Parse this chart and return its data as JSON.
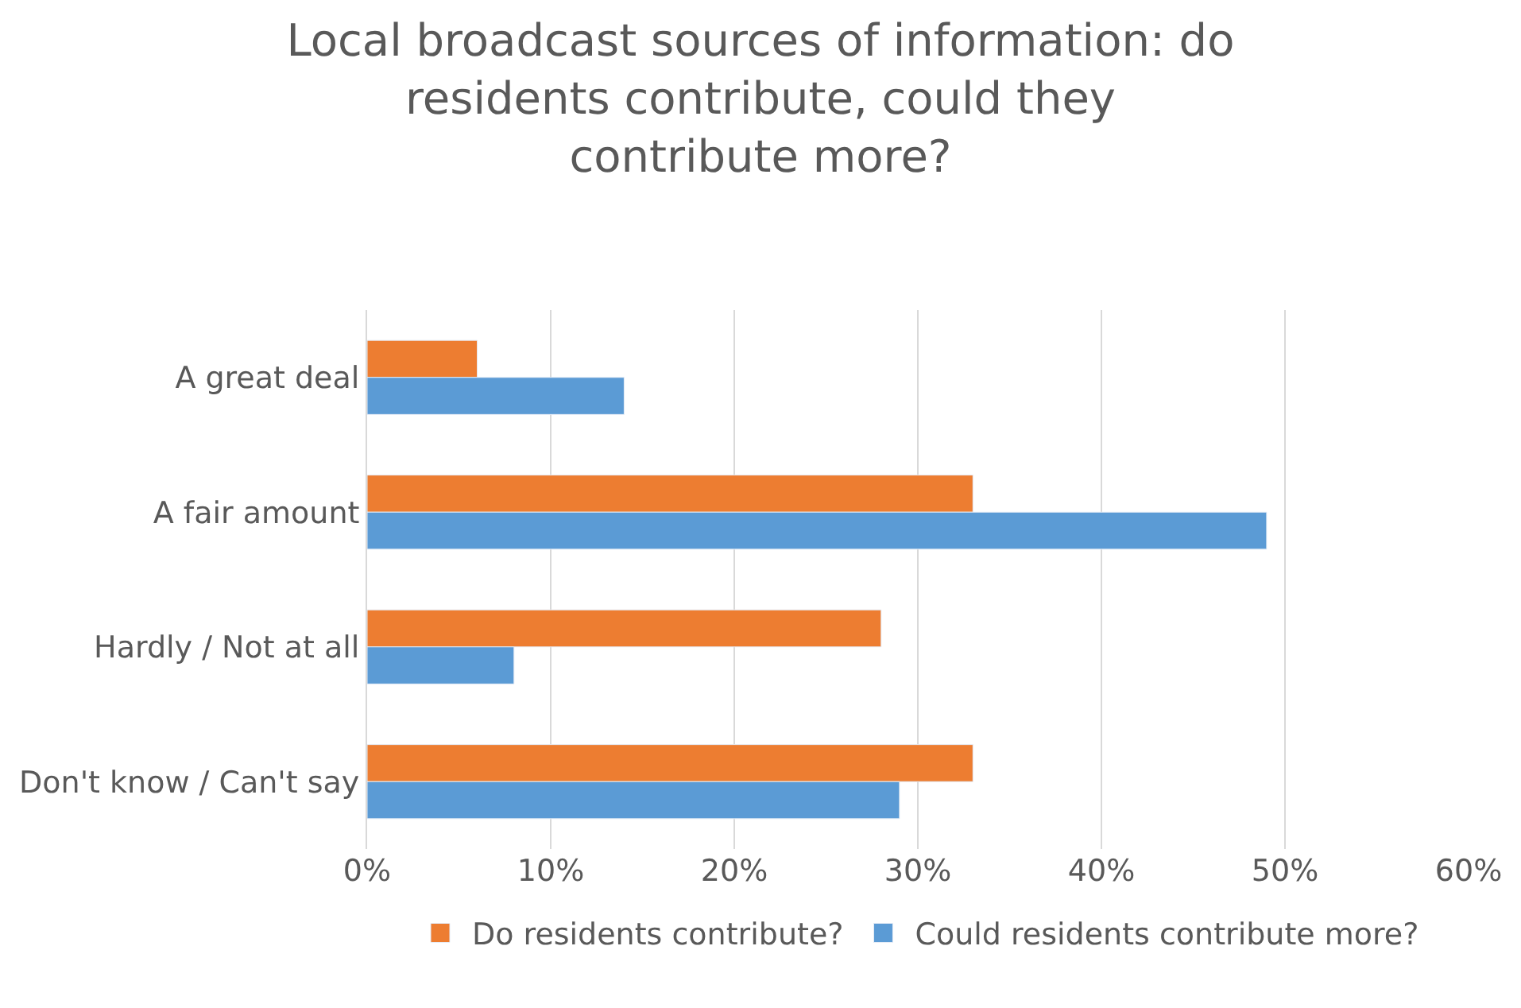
{
  "chart_data": {
    "type": "bar",
    "orientation": "horizontal",
    "title": "Local broadcast sources of information: do residents contribute, could they contribute more?",
    "categories": [
      "A great deal",
      "A fair amount",
      "Hardly / Not at all",
      "Don't know / Can't say"
    ],
    "series": [
      {
        "name": "Do residents contribute?",
        "color": "#ed7d31",
        "values": [
          6,
          33,
          28,
          33
        ]
      },
      {
        "name": "Could residents contribute more?",
        "color": "#5b9bd5",
        "values": [
          14,
          49,
          8,
          29
        ]
      }
    ],
    "xlim": [
      0,
      60
    ],
    "xticks": [
      {
        "value": 0,
        "label": "0%"
      },
      {
        "value": 10,
        "label": "10%"
      },
      {
        "value": 20,
        "label": "20%"
      },
      {
        "value": 30,
        "label": "30%"
      },
      {
        "value": 40,
        "label": "40%"
      },
      {
        "value": 50,
        "label": "50%"
      },
      {
        "value": 60,
        "label": "60%"
      }
    ],
    "grid": "x",
    "legend": "bottom"
  }
}
